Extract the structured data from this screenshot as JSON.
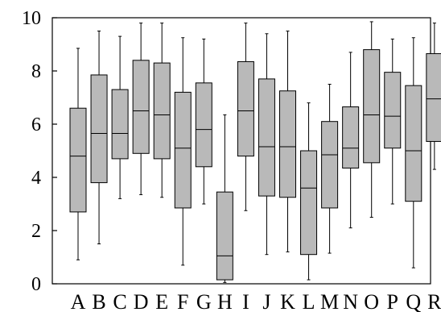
{
  "chart_data": {
    "type": "box",
    "title": "",
    "xlabel": "",
    "ylabel": "",
    "ylim": [
      0,
      10
    ],
    "yticks": [
      0,
      2,
      4,
      6,
      8,
      10
    ],
    "ytick_labels": [
      "0",
      "2",
      "4",
      "6",
      "8",
      "10"
    ],
    "grid": false,
    "legend": "none",
    "categories": [
      "A",
      "B",
      "C",
      "D",
      "E",
      "F",
      "G",
      "H",
      "I",
      "J",
      "K",
      "L",
      "M",
      "N",
      "O",
      "P",
      "Q",
      "R"
    ],
    "boxes": [
      {
        "label": "A",
        "min": 0.9,
        "q1": 2.7,
        "median": 4.8,
        "q3": 6.6,
        "max": 8.85
      },
      {
        "label": "B",
        "min": 1.5,
        "q1": 3.8,
        "median": 5.65,
        "q3": 7.85,
        "max": 9.5
      },
      {
        "label": "C",
        "min": 3.2,
        "q1": 4.7,
        "median": 5.65,
        "q3": 7.3,
        "max": 9.3
      },
      {
        "label": "D",
        "min": 3.35,
        "q1": 4.9,
        "median": 6.5,
        "q3": 8.4,
        "max": 9.8
      },
      {
        "label": "E",
        "min": 3.25,
        "q1": 4.7,
        "median": 6.35,
        "q3": 8.3,
        "max": 9.8
      },
      {
        "label": "F",
        "min": 0.7,
        "q1": 2.85,
        "median": 5.1,
        "q3": 7.2,
        "max": 9.25
      },
      {
        "label": "G",
        "min": 3.0,
        "q1": 4.4,
        "median": 5.8,
        "q3": 7.55,
        "max": 9.2
      },
      {
        "label": "H",
        "min": 0.05,
        "q1": 0.15,
        "median": 1.05,
        "q3": 3.45,
        "max": 6.35
      },
      {
        "label": "I",
        "min": 2.75,
        "q1": 4.8,
        "median": 6.5,
        "q3": 8.35,
        "max": 9.8
      },
      {
        "label": "J",
        "min": 1.1,
        "q1": 3.3,
        "median": 5.15,
        "q3": 7.7,
        "max": 9.4
      },
      {
        "label": "K",
        "min": 1.2,
        "q1": 3.25,
        "median": 5.15,
        "q3": 7.25,
        "max": 9.5
      },
      {
        "label": "L",
        "min": 0.15,
        "q1": 1.1,
        "median": 3.6,
        "q3": 5.0,
        "max": 6.8
      },
      {
        "label": "M",
        "min": 1.15,
        "q1": 2.85,
        "median": 4.85,
        "q3": 6.1,
        "max": 7.5
      },
      {
        "label": "N",
        "min": 2.1,
        "q1": 4.35,
        "median": 5.1,
        "q3": 6.65,
        "max": 8.7
      },
      {
        "label": "O",
        "min": 2.5,
        "q1": 4.55,
        "median": 6.35,
        "q3": 8.8,
        "max": 9.85
      },
      {
        "label": "P",
        "min": 3.0,
        "q1": 5.1,
        "median": 6.3,
        "q3": 7.95,
        "max": 9.2
      },
      {
        "label": "Q",
        "min": 0.6,
        "q1": 3.1,
        "median": 5.0,
        "q3": 7.45,
        "max": 9.25
      },
      {
        "label": "R",
        "min": 4.3,
        "q1": 5.35,
        "median": 6.95,
        "q3": 8.65,
        "max": 9.8
      }
    ],
    "colors": {
      "box_fill": "#b9b9b9",
      "stroke": "#000000",
      "background": "#ffffff"
    }
  }
}
